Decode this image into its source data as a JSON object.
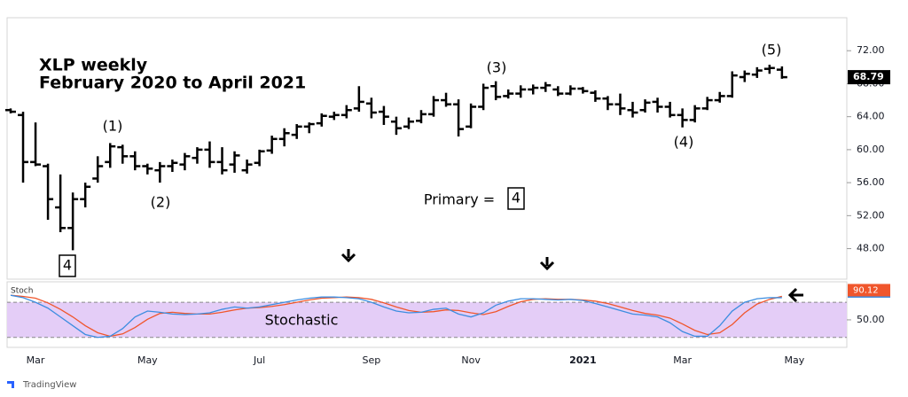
{
  "chart_data": [
    {
      "type": "ohlc",
      "title": "XLP weekly",
      "subtitle": "February 2020 to April 2021",
      "color": "#000000",
      "categories": [
        null,
        null,
        "Mar",
        null,
        null,
        null,
        null,
        null,
        null,
        null,
        null,
        "May",
        null,
        null,
        null,
        null,
        null,
        null,
        null,
        null,
        "Jul",
        null,
        null,
        null,
        null,
        null,
        null,
        null,
        null,
        "Sep",
        null,
        null,
        null,
        null,
        null,
        null,
        null,
        "Nov",
        null,
        null,
        null,
        null,
        null,
        null,
        null,
        null,
        "2021",
        null,
        null,
        null,
        null,
        null,
        null,
        null,
        "Mar",
        null,
        null,
        null,
        null,
        null,
        null,
        null,
        null,
        "May",
        null,
        null,
        null,
        null
      ],
      "open": [
        64.8,
        64.2,
        58.5,
        58.0,
        53.0,
        50.5,
        54.0,
        56.5,
        58.5,
        60.3,
        59.2,
        58.0,
        57.5,
        58.0,
        58.2,
        59.0,
        60.0,
        58.5,
        58.2,
        57.5,
        58.4,
        59.9,
        61.3,
        61.8,
        62.8,
        63.2,
        64.0,
        64.2,
        65.0,
        65.6,
        64.6,
        63.4,
        62.8,
        63.5,
        64.3,
        66.0,
        65.5,
        62.8,
        65.2,
        67.7,
        66.5,
        66.8,
        67.3,
        67.5,
        67.3,
        66.8,
        67.4,
        66.9,
        66.2,
        65.5,
        64.8,
        64.8,
        65.8,
        65.2,
        64.2,
        63.6,
        65.0,
        66.0,
        66.5,
        68.8,
        69.1,
        69.8,
        69.7,
        null,
        null,
        null,
        null,
        null
      ],
      "high": [
        65.0,
        64.6,
        63.3,
        58.3,
        57.0,
        54.8,
        56.0,
        59.2,
        60.8,
        60.6,
        59.8,
        58.3,
        58.5,
        58.8,
        59.6,
        60.3,
        61.0,
        60.3,
        59.8,
        58.8,
        60.0,
        61.7,
        62.6,
        63.1,
        63.3,
        64.4,
        64.6,
        65.4,
        67.7,
        66.3,
        65.3,
        64.0,
        63.9,
        64.8,
        66.5,
        66.9,
        66.1,
        65.6,
        68.0,
        68.3,
        67.3,
        67.8,
        67.9,
        68.2,
        67.7,
        67.8,
        67.6,
        67.2,
        66.5,
        66.8,
        65.8,
        66.1,
        66.3,
        65.8,
        65.0,
        65.4,
        66.4,
        67.0,
        69.5,
        69.6,
        70.0,
        70.3,
        70.1,
        null,
        null,
        null,
        null,
        null
      ],
      "low": [
        64.4,
        56.0,
        58.0,
        51.5,
        50.0,
        47.8,
        53.0,
        56.0,
        57.8,
        58.3,
        57.5,
        57.0,
        56.0,
        57.3,
        57.5,
        58.3,
        57.8,
        57.0,
        57.2,
        57.1,
        58.0,
        59.5,
        60.4,
        61.3,
        62.0,
        62.8,
        63.6,
        63.8,
        64.6,
        63.8,
        63.0,
        61.8,
        62.5,
        63.2,
        64.0,
        65.2,
        61.6,
        62.6,
        64.8,
        66.0,
        66.2,
        66.3,
        66.7,
        67.0,
        66.5,
        66.6,
        66.8,
        65.8,
        64.8,
        64.2,
        63.9,
        64.5,
        64.5,
        63.9,
        62.7,
        63.3,
        64.8,
        65.7,
        66.3,
        68.2,
        68.7,
        69.2,
        68.6,
        null,
        null,
        null,
        null,
        null
      ],
      "close": [
        64.6,
        58.5,
        58.2,
        54.0,
        50.5,
        54.0,
        55.5,
        58.0,
        60.4,
        59.2,
        58.0,
        57.7,
        58.0,
        58.4,
        59.2,
        60.0,
        58.5,
        57.5,
        59.3,
        58.2,
        59.8,
        61.3,
        62.0,
        62.8,
        63.1,
        64.1,
        64.2,
        64.8,
        65.8,
        64.5,
        64.0,
        62.6,
        63.4,
        64.3,
        66.0,
        65.5,
        62.5,
        65.2,
        67.5,
        66.4,
        66.8,
        67.3,
        67.5,
        67.8,
        66.8,
        67.4,
        67.1,
        66.2,
        65.5,
        65.0,
        64.5,
        65.7,
        65.2,
        64.2,
        63.6,
        65.0,
        66.0,
        66.5,
        69.0,
        69.2,
        69.6,
        69.9,
        68.79,
        null,
        null,
        null,
        null,
        null
      ],
      "ylim": [
        44.3,
        76
      ],
      "yticks": [
        {
          "value": 48,
          "label": "48.00"
        },
        {
          "value": 52,
          "label": "52.00"
        },
        {
          "value": 56,
          "label": "56.00"
        },
        {
          "value": 60,
          "label": "60.00"
        },
        {
          "value": 64,
          "label": "64.00"
        },
        {
          "value": 68,
          "label": "68.00"
        },
        {
          "value": 72,
          "label": "72.00"
        }
      ],
      "annotations": [
        "(1)",
        "(2)",
        "(3)",
        "(4)",
        "(5)",
        "Primary =",
        "4",
        "4"
      ],
      "footer": "TradingView"
    },
    {
      "type": "line",
      "title": "Stoch",
      "label": "Stochastic",
      "band": [
        20,
        80
      ],
      "band_color": "#e4cdf7",
      "series": [
        {
          "color": "#3d8de0",
          "values": [
            92,
            88,
            80,
            70,
            55,
            40,
            25,
            20,
            22,
            35,
            55,
            65,
            63,
            60,
            59,
            60,
            62,
            68,
            72,
            70,
            72,
            76,
            80,
            84,
            87,
            89,
            89,
            88,
            86,
            80,
            72,
            65,
            62,
            63,
            68,
            70,
            60,
            55,
            62,
            75,
            82,
            86,
            86,
            85,
            84,
            85,
            83,
            78,
            72,
            66,
            60,
            58,
            55,
            45,
            30,
            22,
            22,
            40,
            65,
            80,
            86,
            88,
            87.83,
            null,
            null,
            null,
            null,
            null
          ]
        },
        {
          "color": "#f0562c",
          "values": [
            92,
            90,
            87,
            79,
            68,
            55,
            40,
            28,
            22,
            26,
            37,
            51,
            61,
            63,
            61,
            60,
            60,
            63,
            67,
            70,
            71,
            73,
            76,
            80,
            84,
            87,
            88,
            89,
            88,
            85,
            79,
            72,
            66,
            63,
            64,
            67,
            66,
            62,
            59,
            64,
            73,
            81,
            85,
            86,
            85,
            85,
            84,
            82,
            78,
            72,
            66,
            61,
            58,
            53,
            43,
            32,
            25,
            28,
            42,
            62,
            77,
            85,
            90.12,
            null,
            null,
            null,
            null,
            null
          ]
        }
      ],
      "ylim": [
        3,
        115
      ],
      "yticks": [
        {
          "value": 50,
          "label": "50.00"
        }
      ]
    }
  ]
}
